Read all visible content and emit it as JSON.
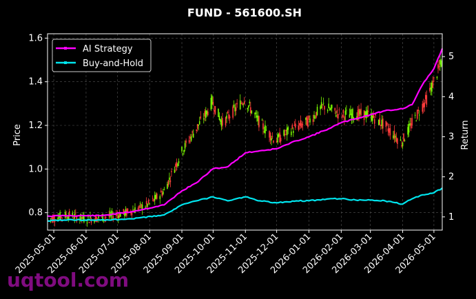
{
  "chart_data": {
    "type": "line",
    "title": "FUND - 561600.SH",
    "ylabel": "Price",
    "y2label": "Return",
    "x_dates": [
      "2025-04-25",
      "2026-05-09"
    ],
    "xticks": [
      "2025-05-01",
      "2025-06-01",
      "2025-07-01",
      "2025-08-01",
      "2025-09-01",
      "2025-10-01",
      "2025-11-01",
      "2025-12-01",
      "2026-01-01",
      "2026-02-01",
      "2026-03-01",
      "2026-04-01",
      "2026-05-01"
    ],
    "ylim": [
      0.72,
      1.62
    ],
    "yticks": [
      "0.8",
      "1.0",
      "1.2",
      "1.4",
      "1.6"
    ],
    "y2lim": [
      0.67,
      5.57
    ],
    "y2ticks": [
      "1",
      "2",
      "3",
      "4",
      "5"
    ],
    "grid": true,
    "legend_position": "upper-left",
    "candle_colors": {
      "up": "#7cfc00",
      "down": "#ff3b3b"
    },
    "price_anchors": [
      [
        "2025-04-25",
        0.77
      ],
      [
        "2025-05-15",
        0.79
      ],
      [
        "2025-06-01",
        0.77
      ],
      [
        "2025-06-20",
        0.78
      ],
      [
        "2025-07-10",
        0.8
      ],
      [
        "2025-08-01",
        0.84
      ],
      [
        "2025-08-15",
        0.9
      ],
      [
        "2025-09-01",
        1.08
      ],
      [
        "2025-09-10",
        1.15
      ],
      [
        "2025-09-25",
        1.26
      ],
      [
        "2025-09-30",
        1.31
      ],
      [
        "2025-10-10",
        1.21
      ],
      [
        "2025-10-31",
        1.32
      ],
      [
        "2025-11-15",
        1.21
      ],
      [
        "2025-11-30",
        1.13
      ],
      [
        "2025-12-15",
        1.18
      ],
      [
        "2026-01-01",
        1.22
      ],
      [
        "2026-01-15",
        1.29
      ],
      [
        "2026-01-31",
        1.25
      ],
      [
        "2026-02-15",
        1.25
      ],
      [
        "2026-02-28",
        1.25
      ],
      [
        "2026-03-15",
        1.2
      ],
      [
        "2026-03-31",
        1.12
      ],
      [
        "2026-04-10",
        1.21
      ],
      [
        "2026-04-25",
        1.33
      ],
      [
        "2026-05-09",
        1.5
      ]
    ],
    "series": [
      {
        "name": "AI Strategy",
        "color": "#ff00ff",
        "points": [
          [
            "2025-04-25",
            1.02
          ],
          [
            "2025-05-15",
            1.03
          ],
          [
            "2025-06-15",
            1.03
          ],
          [
            "2025-07-15",
            1.13
          ],
          [
            "2025-08-15",
            1.3
          ],
          [
            "2025-09-01",
            1.65
          ],
          [
            "2025-09-15",
            1.85
          ],
          [
            "2025-10-01",
            2.2
          ],
          [
            "2025-10-15",
            2.25
          ],
          [
            "2025-11-01",
            2.6
          ],
          [
            "2025-11-15",
            2.65
          ],
          [
            "2025-12-01",
            2.7
          ],
          [
            "2025-12-20",
            2.9
          ],
          [
            "2026-01-01",
            3.0
          ],
          [
            "2026-01-20",
            3.2
          ],
          [
            "2026-02-01",
            3.35
          ],
          [
            "2026-02-15",
            3.45
          ],
          [
            "2026-03-01",
            3.55
          ],
          [
            "2026-03-15",
            3.65
          ],
          [
            "2026-04-01",
            3.7
          ],
          [
            "2026-04-10",
            3.8
          ],
          [
            "2026-04-20",
            4.3
          ],
          [
            "2026-05-01",
            4.7
          ],
          [
            "2026-05-09",
            5.2
          ]
        ]
      },
      {
        "name": "Buy-and-Hold",
        "color": "#00e5ee",
        "points": [
          [
            "2025-04-25",
            0.9
          ],
          [
            "2025-05-15",
            0.93
          ],
          [
            "2025-06-15",
            0.92
          ],
          [
            "2025-07-15",
            0.95
          ],
          [
            "2025-08-15",
            1.05
          ],
          [
            "2025-09-01",
            1.3
          ],
          [
            "2025-09-15",
            1.4
          ],
          [
            "2025-10-01",
            1.5
          ],
          [
            "2025-10-15",
            1.4
          ],
          [
            "2025-11-01",
            1.5
          ],
          [
            "2025-11-15",
            1.4
          ],
          [
            "2025-12-01",
            1.35
          ],
          [
            "2025-12-20",
            1.4
          ],
          [
            "2026-01-01",
            1.4
          ],
          [
            "2026-01-20",
            1.45
          ],
          [
            "2026-02-01",
            1.45
          ],
          [
            "2026-02-15",
            1.42
          ],
          [
            "2026-03-01",
            1.42
          ],
          [
            "2026-03-15",
            1.4
          ],
          [
            "2026-04-01",
            1.32
          ],
          [
            "2026-04-10",
            1.45
          ],
          [
            "2026-04-20",
            1.55
          ],
          [
            "2026-05-01",
            1.6
          ],
          [
            "2026-05-09",
            1.72
          ]
        ]
      }
    ]
  },
  "watermark": "uqtool.com"
}
